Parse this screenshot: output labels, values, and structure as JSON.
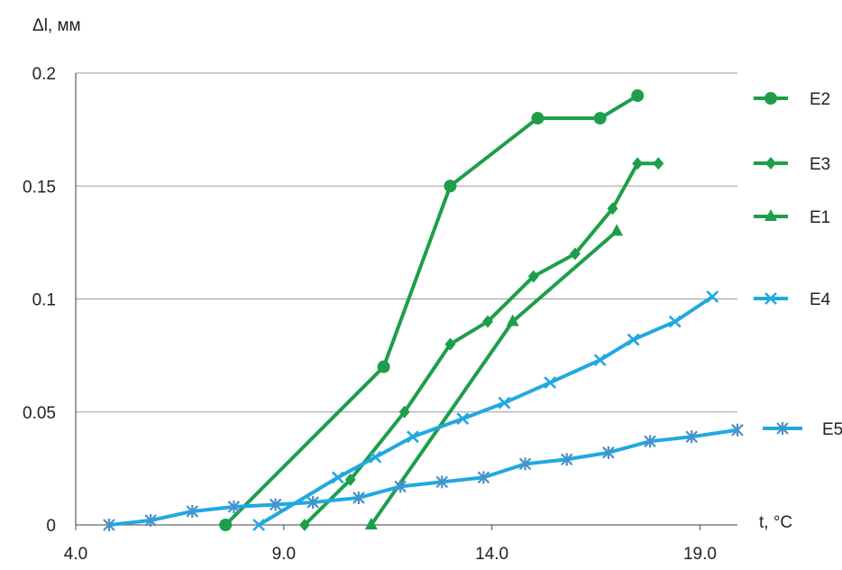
{
  "chart_data": {
    "type": "line",
    "title": "",
    "xlabel": "t, °C",
    "ylabel": "Δl, мм",
    "xlim": [
      4.0,
      19.9
    ],
    "ylim": [
      0,
      0.2
    ],
    "xticks": [
      "4.0",
      "9.0",
      "14.0",
      "19.0"
    ],
    "xtick_values": [
      4.0,
      9.0,
      14.0,
      19.0
    ],
    "yticks": [
      "0",
      "0.05",
      "0.1",
      "0.15",
      "0.2"
    ],
    "ytick_values": [
      0,
      0.05,
      0.1,
      0.15,
      0.2
    ],
    "grid": "horizontal",
    "legend_position": "right",
    "series": [
      {
        "name": "E2",
        "color": "#1e9e4a",
        "marker": "circle",
        "points": [
          [
            7.6,
            0.0
          ],
          [
            11.4,
            0.07
          ],
          [
            13.0,
            0.15
          ],
          [
            15.1,
            0.18
          ],
          [
            16.6,
            0.18
          ],
          [
            17.5,
            0.19
          ]
        ]
      },
      {
        "name": "E3",
        "color": "#1e9e4a",
        "marker": "diamond",
        "points": [
          [
            9.5,
            0.0
          ],
          [
            10.6,
            0.02
          ],
          [
            11.9,
            0.05
          ],
          [
            13.0,
            0.08
          ],
          [
            13.9,
            0.09
          ],
          [
            15.0,
            0.11
          ],
          [
            16.0,
            0.12
          ],
          [
            16.9,
            0.14
          ],
          [
            17.5,
            0.16
          ],
          [
            18.0,
            0.16
          ]
        ]
      },
      {
        "name": "E1",
        "color": "#1e9e4a",
        "marker": "triangle",
        "points": [
          [
            11.1,
            0.0
          ],
          [
            14.5,
            0.09
          ],
          [
            17.0,
            0.13
          ]
        ]
      },
      {
        "name": "E4",
        "color": "#22a8e0",
        "marker": "x",
        "points": [
          [
            8.4,
            0.0
          ],
          [
            10.3,
            0.021
          ],
          [
            11.2,
            0.03
          ],
          [
            12.1,
            0.039
          ],
          [
            13.3,
            0.047
          ],
          [
            14.3,
            0.054
          ],
          [
            15.4,
            0.063
          ],
          [
            16.6,
            0.073
          ],
          [
            17.4,
            0.082
          ],
          [
            18.4,
            0.09
          ],
          [
            19.3,
            0.101
          ]
        ]
      },
      {
        "name": "E5",
        "color": "#22a8e0",
        "marker": "asterisk",
        "points": [
          [
            4.8,
            0.0
          ],
          [
            5.8,
            0.002
          ],
          [
            6.8,
            0.006
          ],
          [
            7.8,
            0.008
          ],
          [
            8.8,
            0.009
          ],
          [
            9.7,
            0.01
          ],
          [
            10.8,
            0.012
          ],
          [
            11.8,
            0.017
          ],
          [
            12.8,
            0.019
          ],
          [
            13.8,
            0.021
          ],
          [
            14.8,
            0.027
          ],
          [
            15.8,
            0.029
          ],
          [
            16.8,
            0.032
          ],
          [
            17.8,
            0.037
          ],
          [
            18.8,
            0.039
          ],
          [
            19.9,
            0.042
          ]
        ]
      }
    ]
  }
}
